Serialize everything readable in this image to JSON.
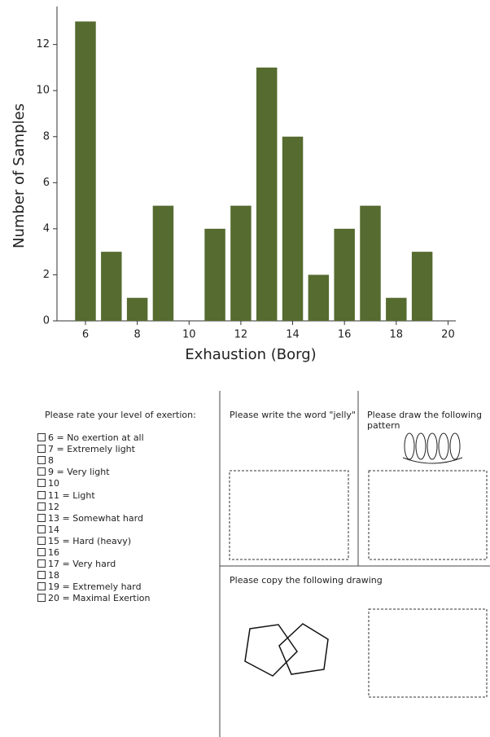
{
  "chart_data": {
    "type": "bar",
    "x_label": "Exhaustion (Borg)",
    "y_label": "Number of Samples",
    "x": [
      6,
      7,
      8,
      9,
      10,
      11,
      12,
      13,
      14,
      15,
      16,
      17,
      18,
      19
    ],
    "values": [
      13,
      3,
      1,
      5,
      0,
      4,
      5,
      11,
      8,
      2,
      4,
      5,
      1,
      3
    ],
    "color": "#556b2f",
    "bar_width": 0.8,
    "xlim": [
      4.9,
      20.3
    ],
    "xticks": [
      6,
      8,
      10,
      12,
      14,
      16,
      18,
      20
    ],
    "ylim": [
      0,
      13.65
    ],
    "yticks": [
      0,
      2,
      4,
      6,
      8,
      10,
      12
    ],
    "grid": false
  },
  "form": {
    "rating": {
      "prompt": "Please rate your level of exertion:",
      "options": [
        "6 = No exertion at all",
        "7 = Extremely light",
        "8",
        "9 = Very light",
        "10",
        "11 = Light",
        "12",
        "13 = Somewhat hard",
        "14",
        "15 = Hard (heavy)",
        "16",
        "17 = Very hard",
        "18",
        "19 = Extremely hard",
        "20 = Maximal Exertion"
      ]
    },
    "tasks": [
      "Please write the word \"jelly\"",
      "Please draw the following pattern",
      "Please copy the following drawing"
    ]
  }
}
